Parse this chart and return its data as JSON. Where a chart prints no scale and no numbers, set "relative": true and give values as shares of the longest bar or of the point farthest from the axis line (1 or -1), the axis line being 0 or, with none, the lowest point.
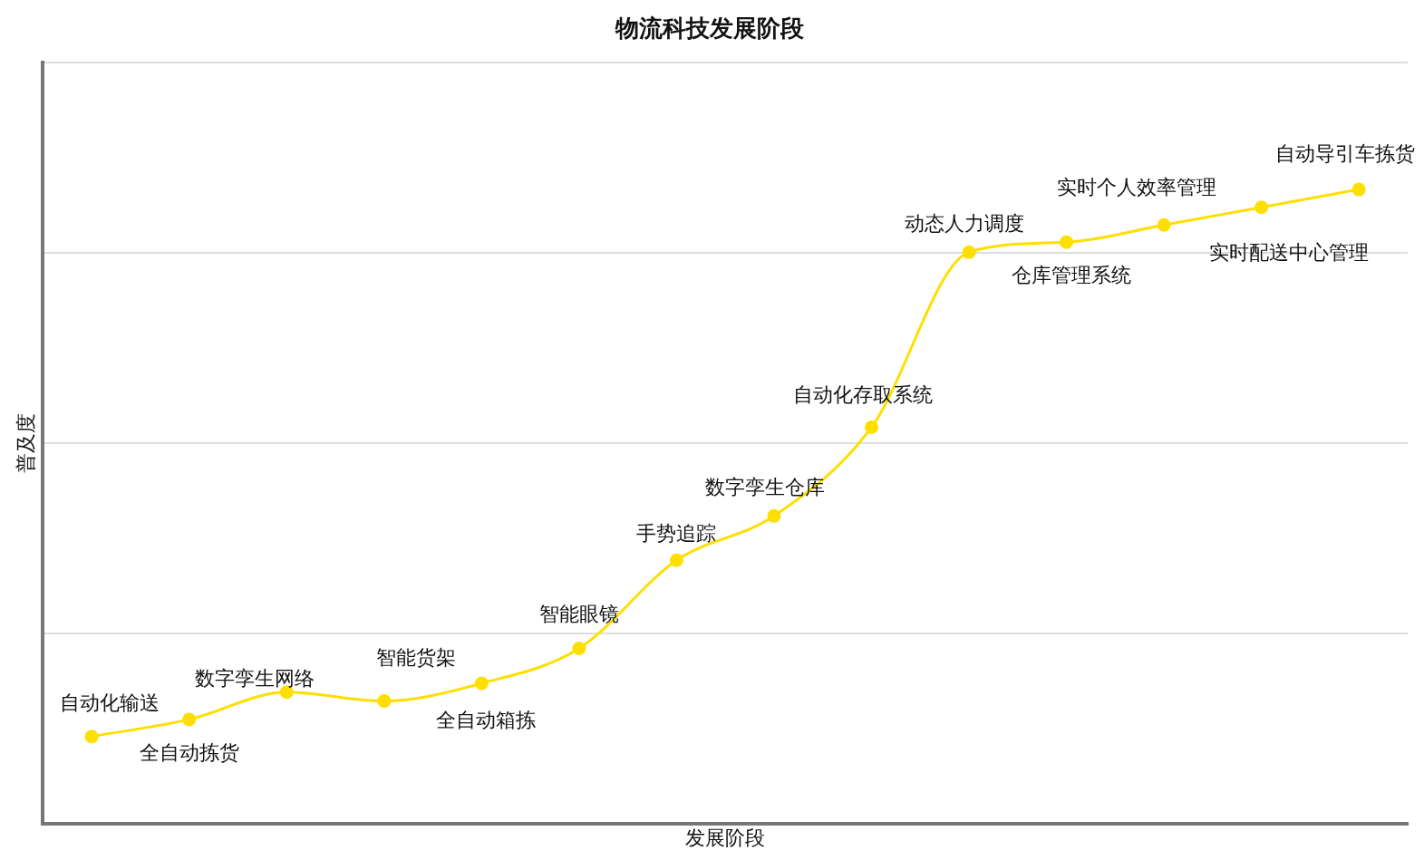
{
  "chart_data": {
    "type": "line",
    "title": "物流科技发展阶段",
    "xlabel": "发展阶段",
    "ylabel": "普及度",
    "relative": true,
    "grid": "y",
    "marker": "circle",
    "line_style": "solid",
    "legend": false,
    "categories": [
      null,
      null,
      null,
      null,
      null,
      null,
      null,
      null,
      null,
      null,
      null,
      null,
      null,
      null
    ],
    "series": [
      {
        "color": "#ffdf00",
        "values": [
          0.137,
          0.164,
          0.207,
          0.193,
          0.221,
          0.276,
          0.415,
          0.485,
          0.625,
          0.901,
          0.917,
          0.944,
          0.972,
          1
        ]
      }
    ],
    "annotations": [
      {
        "text": "自动化输送",
        "y": 0.137
      },
      {
        "text": "全自动拣货",
        "y": 0.164
      },
      {
        "text": "数字孪生网络",
        "y": 0.207
      },
      {
        "text": "智能货架",
        "y": 0.193
      },
      {
        "text": "全自动箱拣",
        "y": 0.221
      },
      {
        "text": "智能眼镜",
        "y": 0.276
      },
      {
        "text": "手势追踪",
        "y": 0.415
      },
      {
        "text": "数字孪生仓库",
        "y": 0.485
      },
      {
        "text": "自动化存取系统",
        "y": 0.625
      },
      {
        "text": "动态人力调度",
        "y": 0.901
      },
      {
        "text": "仓库管理系统",
        "y": 0.917
      },
      {
        "text": "实时个人效率管理",
        "y": 0.944
      },
      {
        "text": "实时配送中心管理",
        "y": 0.972
      },
      {
        "text": "自动导引车拣货",
        "y": 1
      }
    ]
  }
}
